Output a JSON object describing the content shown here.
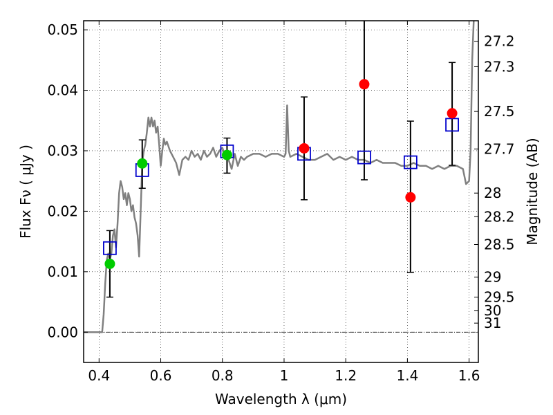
{
  "chart_data": {
    "type": "scatter",
    "xlabel": "Wavelength  λ (μm)",
    "ylabel": "Flux  Fν  ( μJy )",
    "y2label": "Magnitude (AB)",
    "xlim": [
      0.35,
      1.63
    ],
    "ylim": [
      -0.005,
      0.0515
    ],
    "grid": true,
    "x_ticks": [
      0.4,
      0.6,
      0.8,
      1.0,
      1.2,
      1.4,
      1.6
    ],
    "x_tick_labels": [
      "0.4",
      "0.6",
      "0.8",
      "1",
      "1.2",
      "1.4",
      "1.6"
    ],
    "y_ticks": [
      0.0,
      0.01,
      0.02,
      0.03,
      0.04,
      0.05
    ],
    "y_tick_labels": [
      "0.00",
      "0.01",
      "0.02",
      "0.03",
      "0.04",
      "0.05"
    ],
    "y2_ticks": [
      {
        "label": "27.2",
        "flux": 0.0481
      },
      {
        "label": "27.3",
        "flux": 0.0439
      },
      {
        "label": "27.5",
        "flux": 0.0365
      },
      {
        "label": "27.7",
        "flux": 0.0303
      },
      {
        "label": "28",
        "flux": 0.023
      },
      {
        "label": "28.2",
        "flux": 0.0191
      },
      {
        "label": "28.5",
        "flux": 0.0145
      },
      {
        "label": "29",
        "flux": 0.0091
      },
      {
        "label": "29.5",
        "flux": 0.0058
      },
      {
        "label": "30",
        "flux": 0.0036
      },
      {
        "label": "31",
        "flux": 0.0015
      }
    ],
    "series": [
      {
        "marker": "line",
        "color": "#808080",
        "points": [
          [
            0.35,
            0.0
          ],
          [
            0.41,
            0.0
          ],
          [
            0.415,
            0.003
          ],
          [
            0.42,
            0.008
          ],
          [
            0.425,
            0.012
          ],
          [
            0.43,
            0.013
          ],
          [
            0.435,
            0.012
          ],
          [
            0.44,
            0.013
          ],
          [
            0.445,
            0.016
          ],
          [
            0.45,
            0.017
          ],
          [
            0.455,
            0.014
          ],
          [
            0.46,
            0.018
          ],
          [
            0.465,
            0.023
          ],
          [
            0.47,
            0.025
          ],
          [
            0.475,
            0.024
          ],
          [
            0.48,
            0.022
          ],
          [
            0.485,
            0.023
          ],
          [
            0.49,
            0.021
          ],
          [
            0.495,
            0.023
          ],
          [
            0.5,
            0.022
          ],
          [
            0.505,
            0.02
          ],
          [
            0.51,
            0.021
          ],
          [
            0.515,
            0.019
          ],
          [
            0.52,
            0.018
          ],
          [
            0.525,
            0.016
          ],
          [
            0.53,
            0.0125
          ],
          [
            0.535,
            0.02
          ],
          [
            0.54,
            0.028
          ],
          [
            0.545,
            0.03
          ],
          [
            0.55,
            0.031
          ],
          [
            0.555,
            0.033
          ],
          [
            0.56,
            0.0355
          ],
          [
            0.565,
            0.034
          ],
          [
            0.57,
            0.0355
          ],
          [
            0.575,
            0.034
          ],
          [
            0.58,
            0.035
          ],
          [
            0.585,
            0.033
          ],
          [
            0.59,
            0.034
          ],
          [
            0.595,
            0.031
          ],
          [
            0.6,
            0.0275
          ],
          [
            0.605,
            0.03
          ],
          [
            0.61,
            0.032
          ],
          [
            0.615,
            0.031
          ],
          [
            0.62,
            0.0315
          ],
          [
            0.63,
            0.03
          ],
          [
            0.64,
            0.029
          ],
          [
            0.65,
            0.028
          ],
          [
            0.66,
            0.026
          ],
          [
            0.67,
            0.0285
          ],
          [
            0.68,
            0.029
          ],
          [
            0.69,
            0.0285
          ],
          [
            0.7,
            0.03
          ],
          [
            0.71,
            0.029
          ],
          [
            0.72,
            0.0295
          ],
          [
            0.73,
            0.0285
          ],
          [
            0.74,
            0.03
          ],
          [
            0.75,
            0.029
          ],
          [
            0.76,
            0.0295
          ],
          [
            0.77,
            0.0305
          ],
          [
            0.78,
            0.029
          ],
          [
            0.79,
            0.03
          ],
          [
            0.8,
            0.0305
          ],
          [
            0.81,
            0.029
          ],
          [
            0.82,
            0.0285
          ],
          [
            0.83,
            0.027
          ],
          [
            0.84,
            0.0295
          ],
          [
            0.85,
            0.0275
          ],
          [
            0.86,
            0.029
          ],
          [
            0.87,
            0.0285
          ],
          [
            0.88,
            0.029
          ],
          [
            0.9,
            0.0295
          ],
          [
            0.92,
            0.0295
          ],
          [
            0.94,
            0.029
          ],
          [
            0.96,
            0.0295
          ],
          [
            0.98,
            0.0295
          ],
          [
            1.0,
            0.029
          ],
          [
            1.005,
            0.0295
          ],
          [
            1.01,
            0.0375
          ],
          [
            1.015,
            0.03
          ],
          [
            1.02,
            0.029
          ],
          [
            1.04,
            0.0295
          ],
          [
            1.06,
            0.029
          ],
          [
            1.08,
            0.0285
          ],
          [
            1.1,
            0.0285
          ],
          [
            1.12,
            0.029
          ],
          [
            1.14,
            0.0295
          ],
          [
            1.16,
            0.0285
          ],
          [
            1.18,
            0.029
          ],
          [
            1.2,
            0.0285
          ],
          [
            1.22,
            0.029
          ],
          [
            1.24,
            0.0285
          ],
          [
            1.26,
            0.0285
          ],
          [
            1.28,
            0.028
          ],
          [
            1.3,
            0.0285
          ],
          [
            1.32,
            0.028
          ],
          [
            1.34,
            0.028
          ],
          [
            1.36,
            0.028
          ],
          [
            1.38,
            0.0275
          ],
          [
            1.4,
            0.0275
          ],
          [
            1.42,
            0.028
          ],
          [
            1.44,
            0.0275
          ],
          [
            1.46,
            0.0275
          ],
          [
            1.48,
            0.027
          ],
          [
            1.5,
            0.0275
          ],
          [
            1.52,
            0.027
          ],
          [
            1.54,
            0.0275
          ],
          [
            1.56,
            0.0275
          ],
          [
            1.58,
            0.027
          ],
          [
            1.59,
            0.0245
          ],
          [
            1.6,
            0.025
          ],
          [
            1.605,
            0.03
          ],
          [
            1.61,
            0.045
          ],
          [
            1.615,
            0.0515
          ]
        ]
      },
      {
        "marker": "square",
        "color": "#0000cc",
        "points": [
          [
            0.435,
            0.0139
          ],
          [
            0.54,
            0.0268
          ],
          [
            0.815,
            0.0299
          ],
          [
            1.065,
            0.0295
          ],
          [
            1.26,
            0.0289
          ],
          [
            1.41,
            0.0281
          ],
          [
            1.545,
            0.0343
          ]
        ]
      },
      {
        "marker": "circle",
        "color": "#00cc00",
        "points": [
          {
            "x": 0.435,
            "y": 0.0113,
            "err_low": 0.0058,
            "err_high": 0.0168
          },
          {
            "x": 0.54,
            "y": 0.0279,
            "err_low": 0.0238,
            "err_high": 0.0318
          },
          {
            "x": 0.815,
            "y": 0.0293,
            "err_low": 0.0263,
            "err_high": 0.0321
          }
        ]
      },
      {
        "marker": "circle",
        "color": "#ff0000",
        "points": [
          {
            "x": 1.065,
            "y": 0.0304,
            "err_low": 0.0219,
            "err_high": 0.0389
          },
          {
            "x": 1.26,
            "y": 0.041,
            "err_low": 0.0252,
            "err_high": 0.0515
          },
          {
            "x": 1.41,
            "y": 0.0223,
            "err_low": 0.0099,
            "err_high": 0.0349
          },
          {
            "x": 1.545,
            "y": 0.0362,
            "err_low": 0.0276,
            "err_high": 0.0446
          }
        ]
      }
    ]
  }
}
